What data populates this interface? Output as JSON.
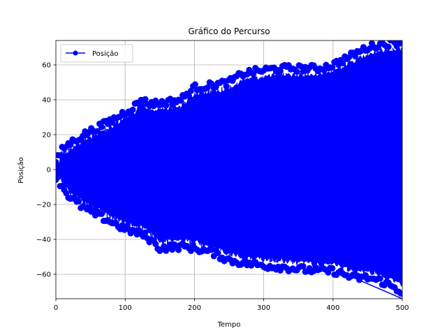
{
  "chart_data": {
    "type": "line",
    "title": "Gráfico do Percurso",
    "xlabel": "Tempo",
    "ylabel": "Posição",
    "xlim": [
      0,
      500
    ],
    "ylim": [
      -74,
      74
    ],
    "xticks": [
      0,
      100,
      200,
      300,
      400,
      500
    ],
    "yticks": [
      -60,
      -40,
      -20,
      0,
      20,
      40,
      60
    ],
    "grid": true,
    "legend": "upper-left",
    "series": [
      {
        "name": "Posição",
        "color": "#0000ff",
        "marker": "circle",
        "envelope_upper": [
          [
            0,
            4
          ],
          [
            10,
            12
          ],
          [
            20,
            15
          ],
          [
            40,
            20
          ],
          [
            60,
            24
          ],
          [
            80,
            28
          ],
          [
            100,
            33
          ],
          [
            120,
            38
          ],
          [
            125,
            42
          ],
          [
            130,
            38
          ],
          [
            150,
            38
          ],
          [
            180,
            40
          ],
          [
            200,
            47
          ],
          [
            220,
            48
          ],
          [
            250,
            50
          ],
          [
            270,
            55
          ],
          [
            300,
            57
          ],
          [
            320,
            58
          ],
          [
            350,
            58
          ],
          [
            380,
            58
          ],
          [
            400,
            60
          ],
          [
            430,
            66
          ],
          [
            450,
            70
          ],
          [
            470,
            72
          ],
          [
            500,
            73
          ]
        ],
        "envelope_lower": [
          [
            0,
            -4
          ],
          [
            10,
            -10
          ],
          [
            20,
            -16
          ],
          [
            40,
            -22
          ],
          [
            60,
            -26
          ],
          [
            80,
            -30
          ],
          [
            100,
            -34
          ],
          [
            130,
            -38
          ],
          [
            150,
            -45
          ],
          [
            180,
            -44
          ],
          [
            200,
            -45
          ],
          [
            230,
            -48
          ],
          [
            250,
            -52
          ],
          [
            280,
            -54
          ],
          [
            300,
            -55
          ],
          [
            330,
            -56
          ],
          [
            350,
            -57
          ],
          [
            380,
            -58
          ],
          [
            400,
            -58
          ],
          [
            430,
            -62
          ],
          [
            450,
            -62
          ],
          [
            470,
            -64
          ],
          [
            500,
            -70
          ]
        ],
        "final_segment": {
          "from": [
            418,
            -60
          ],
          "to": [
            500,
            -74
          ]
        }
      }
    ]
  }
}
